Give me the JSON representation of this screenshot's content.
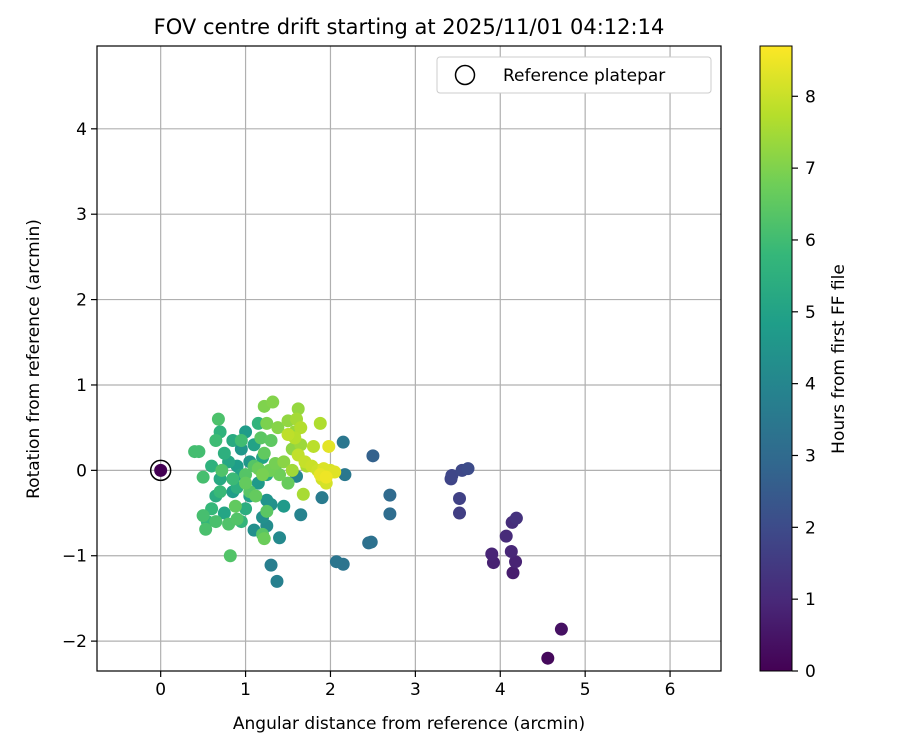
{
  "chart_data": {
    "type": "scatter",
    "title": "FOV centre drift starting at 2025/11/01 04:12:14",
    "xlabel": "Angular distance from reference (arcmin)",
    "ylabel": "Rotation from reference (arcmin)",
    "xlim": [
      -0.75,
      6.6
    ],
    "ylim": [
      -2.35,
      4.97
    ],
    "xticks": [
      0,
      1,
      2,
      3,
      4,
      5,
      6
    ],
    "yticks": [
      -2,
      -1,
      0,
      1,
      2,
      3,
      4
    ],
    "grid": true,
    "legend": {
      "label": "Reference platepar",
      "location": "top-right"
    },
    "reference_point": {
      "x": 0,
      "y": 0
    },
    "colorbar": {
      "label": "Hours from first FF file",
      "range": [
        0,
        8.7
      ],
      "ticks": [
        0,
        1,
        2,
        3,
        4,
        5,
        6,
        7,
        8
      ],
      "colormap": [
        "#440154",
        "#482878",
        "#3e4989",
        "#31688e",
        "#26828e",
        "#1f9e89",
        "#35b779",
        "#6ece58",
        "#b5de2b",
        "#fde725"
      ]
    },
    "points": [
      {
        "x": 0.0,
        "y": 0.0,
        "h": 0.0
      },
      {
        "x": 4.56,
        "y": -2.2,
        "h": 0.2
      },
      {
        "x": 4.72,
        "y": -1.86,
        "h": 0.4
      },
      {
        "x": 4.15,
        "y": -1.2,
        "h": 0.7
      },
      {
        "x": 3.92,
        "y": -1.08,
        "h": 0.8
      },
      {
        "x": 4.18,
        "y": -1.07,
        "h": 0.85
      },
      {
        "x": 3.9,
        "y": -0.98,
        "h": 0.9
      },
      {
        "x": 4.13,
        "y": -0.95,
        "h": 0.95
      },
      {
        "x": 4.07,
        "y": -0.77,
        "h": 1.05
      },
      {
        "x": 4.14,
        "y": -0.61,
        "h": 1.15
      },
      {
        "x": 4.19,
        "y": -0.56,
        "h": 1.25
      },
      {
        "x": 3.52,
        "y": -0.5,
        "h": 1.6
      },
      {
        "x": 3.52,
        "y": -0.33,
        "h": 1.7
      },
      {
        "x": 3.42,
        "y": -0.1,
        "h": 1.8
      },
      {
        "x": 3.43,
        "y": -0.06,
        "h": 1.85
      },
      {
        "x": 3.55,
        "y": 0.0,
        "h": 1.9
      },
      {
        "x": 3.62,
        "y": 0.02,
        "h": 2.0
      },
      {
        "x": 2.5,
        "y": 0.17,
        "h": 2.7
      },
      {
        "x": 2.7,
        "y": -0.29,
        "h": 3.0
      },
      {
        "x": 2.7,
        "y": -0.51,
        "h": 3.1
      },
      {
        "x": 2.45,
        "y": -0.85,
        "h": 3.2
      },
      {
        "x": 2.48,
        "y": -0.84,
        "h": 3.25
      },
      {
        "x": 2.15,
        "y": -1.1,
        "h": 3.35
      },
      {
        "x": 2.07,
        "y": -1.07,
        "h": 3.4
      },
      {
        "x": 2.15,
        "y": 0.33,
        "h": 3.45
      },
      {
        "x": 2.17,
        "y": -0.05,
        "h": 3.5
      },
      {
        "x": 1.9,
        "y": -0.32,
        "h": 3.6
      },
      {
        "x": 1.3,
        "y": -1.11,
        "h": 3.7
      },
      {
        "x": 1.37,
        "y": -1.3,
        "h": 3.8
      },
      {
        "x": 1.65,
        "y": -0.52,
        "h": 3.9
      },
      {
        "x": 1.6,
        "y": -0.07,
        "h": 4.0
      },
      {
        "x": 1.4,
        "y": -0.79,
        "h": 4.1
      },
      {
        "x": 1.25,
        "y": -0.65,
        "h": 4.2
      },
      {
        "x": 1.1,
        "y": -0.7,
        "h": 4.3
      },
      {
        "x": 1.2,
        "y": -0.55,
        "h": 4.35
      },
      {
        "x": 1.3,
        "y": -0.4,
        "h": 4.4
      },
      {
        "x": 1.25,
        "y": -0.35,
        "h": 4.5
      },
      {
        "x": 0.95,
        "y": 0.25,
        "h": 4.55
      },
      {
        "x": 1.05,
        "y": 0.1,
        "h": 4.6
      },
      {
        "x": 1.15,
        "y": -0.15,
        "h": 4.65
      },
      {
        "x": 1.45,
        "y": -0.42,
        "h": 4.7
      },
      {
        "x": 1.0,
        "y": 0.45,
        "h": 4.75
      },
      {
        "x": 0.9,
        "y": 0.05,
        "h": 4.8
      },
      {
        "x": 0.85,
        "y": -0.25,
        "h": 4.85
      },
      {
        "x": 1.05,
        "y": -0.3,
        "h": 4.9
      },
      {
        "x": 0.95,
        "y": -0.05,
        "h": 4.95
      },
      {
        "x": 1.1,
        "y": 0.3,
        "h": 5.0
      },
      {
        "x": 1.2,
        "y": 0.15,
        "h": 5.05
      },
      {
        "x": 0.75,
        "y": -0.5,
        "h": 5.1
      },
      {
        "x": 0.8,
        "y": 0.1,
        "h": 5.15
      },
      {
        "x": 1.25,
        "y": -0.05,
        "h": 5.2
      },
      {
        "x": 0.7,
        "y": -0.1,
        "h": 5.25
      },
      {
        "x": 0.85,
        "y": 0.35,
        "h": 5.3
      },
      {
        "x": 0.65,
        "y": -0.3,
        "h": 5.35
      },
      {
        "x": 1.0,
        "y": -0.45,
        "h": 5.4
      },
      {
        "x": 0.9,
        "y": -0.2,
        "h": 5.45
      },
      {
        "x": 0.75,
        "y": 0.2,
        "h": 5.5
      },
      {
        "x": 0.6,
        "y": 0.05,
        "h": 5.55
      },
      {
        "x": 0.7,
        "y": 0.45,
        "h": 5.6
      },
      {
        "x": 1.15,
        "y": 0.55,
        "h": 5.65
      },
      {
        "x": 0.95,
        "y": -0.6,
        "h": 5.7
      },
      {
        "x": 0.55,
        "y": -0.6,
        "h": 5.75
      },
      {
        "x": 0.6,
        "y": -0.45,
        "h": 5.8
      },
      {
        "x": 0.7,
        "y": -0.25,
        "h": 5.85
      },
      {
        "x": 0.85,
        "y": -0.1,
        "h": 5.9
      },
      {
        "x": 0.65,
        "y": 0.35,
        "h": 5.95
      },
      {
        "x": 0.95,
        "y": 0.35,
        "h": 6.0
      },
      {
        "x": 0.4,
        "y": 0.22,
        "h": 6.05
      },
      {
        "x": 0.45,
        "y": 0.22,
        "h": 6.05
      },
      {
        "x": 0.5,
        "y": -0.08,
        "h": 6.1
      },
      {
        "x": 0.5,
        "y": -0.53,
        "h": 6.1
      },
      {
        "x": 0.53,
        "y": -0.69,
        "h": 6.15
      },
      {
        "x": 0.65,
        "y": -0.6,
        "h": 6.15
      },
      {
        "x": 0.68,
        "y": 0.6,
        "h": 6.2
      },
      {
        "x": 0.72,
        "y": 0.0,
        "h": 6.25
      },
      {
        "x": 0.8,
        "y": -0.63,
        "h": 6.25
      },
      {
        "x": 0.82,
        "y": -1.0,
        "h": 6.3
      },
      {
        "x": 0.9,
        "y": -0.57,
        "h": 6.3
      },
      {
        "x": 1.0,
        "y": -0.05,
        "h": 6.35
      },
      {
        "x": 1.1,
        "y": 0.05,
        "h": 6.35
      },
      {
        "x": 1.05,
        "y": -0.25,
        "h": 6.4
      },
      {
        "x": 1.2,
        "y": -0.75,
        "h": 6.4
      },
      {
        "x": 1.25,
        "y": -0.48,
        "h": 6.45
      },
      {
        "x": 1.18,
        "y": 0.38,
        "h": 6.45
      },
      {
        "x": 1.3,
        "y": 0.35,
        "h": 6.5
      },
      {
        "x": 1.35,
        "y": 0.05,
        "h": 6.5
      },
      {
        "x": 1.22,
        "y": 0.2,
        "h": 6.55
      },
      {
        "x": 0.88,
        "y": -0.42,
        "h": 6.55
      },
      {
        "x": 1.0,
        "y": -0.15,
        "h": 6.6
      },
      {
        "x": 1.12,
        "y": -0.3,
        "h": 6.6
      },
      {
        "x": 1.5,
        "y": -0.15,
        "h": 6.65
      },
      {
        "x": 1.3,
        "y": 0.0,
        "h": 6.65
      },
      {
        "x": 1.22,
        "y": -0.8,
        "h": 6.7
      },
      {
        "x": 1.15,
        "y": 0.02,
        "h": 6.7
      },
      {
        "x": 1.4,
        "y": -0.05,
        "h": 6.75
      },
      {
        "x": 1.28,
        "y": 0.0,
        "h": 6.8
      },
      {
        "x": 1.35,
        "y": 0.08,
        "h": 6.85
      },
      {
        "x": 1.2,
        "y": -0.05,
        "h": 6.9
      },
      {
        "x": 1.25,
        "y": 0.55,
        "h": 6.95
      },
      {
        "x": 1.22,
        "y": 0.75,
        "h": 7.0
      },
      {
        "x": 1.32,
        "y": 0.8,
        "h": 7.05
      },
      {
        "x": 1.38,
        "y": 0.5,
        "h": 7.1
      },
      {
        "x": 1.45,
        "y": 0.1,
        "h": 7.15
      },
      {
        "x": 1.55,
        "y": 0.25,
        "h": 7.2
      },
      {
        "x": 1.5,
        "y": 0.58,
        "h": 7.25
      },
      {
        "x": 1.62,
        "y": 0.72,
        "h": 7.3
      },
      {
        "x": 1.58,
        "y": 0.45,
        "h": 7.35
      },
      {
        "x": 1.65,
        "y": 0.3,
        "h": 7.4
      },
      {
        "x": 1.55,
        "y": 0.0,
        "h": 7.45
      },
      {
        "x": 1.6,
        "y": 0.6,
        "h": 7.5
      },
      {
        "x": 1.68,
        "y": -0.28,
        "h": 7.55
      },
      {
        "x": 1.72,
        "y": 0.05,
        "h": 7.6
      },
      {
        "x": 1.88,
        "y": 0.55,
        "h": 7.65
      },
      {
        "x": 1.65,
        "y": 0.5,
        "h": 7.7
      },
      {
        "x": 1.58,
        "y": 0.38,
        "h": 7.75
      },
      {
        "x": 1.8,
        "y": 0.28,
        "h": 7.8
      },
      {
        "x": 1.5,
        "y": 0.42,
        "h": 7.85
      },
      {
        "x": 1.62,
        "y": 0.18,
        "h": 7.9
      },
      {
        "x": 1.7,
        "y": 0.1,
        "h": 7.95
      },
      {
        "x": 1.78,
        "y": 0.05,
        "h": 8.0
      },
      {
        "x": 1.85,
        "y": 0.0,
        "h": 8.05
      },
      {
        "x": 1.9,
        "y": -0.1,
        "h": 8.1
      },
      {
        "x": 1.95,
        "y": -0.15,
        "h": 8.15
      },
      {
        "x": 2.0,
        "y": 0.0,
        "h": 8.2
      },
      {
        "x": 1.92,
        "y": 0.02,
        "h": 8.25
      },
      {
        "x": 2.05,
        "y": -0.02,
        "h": 8.3
      },
      {
        "x": 1.98,
        "y": 0.28,
        "h": 8.35
      },
      {
        "x": 1.88,
        "y": -0.05,
        "h": 8.4
      },
      {
        "x": 1.95,
        "y": -0.08,
        "h": 8.5
      }
    ]
  }
}
